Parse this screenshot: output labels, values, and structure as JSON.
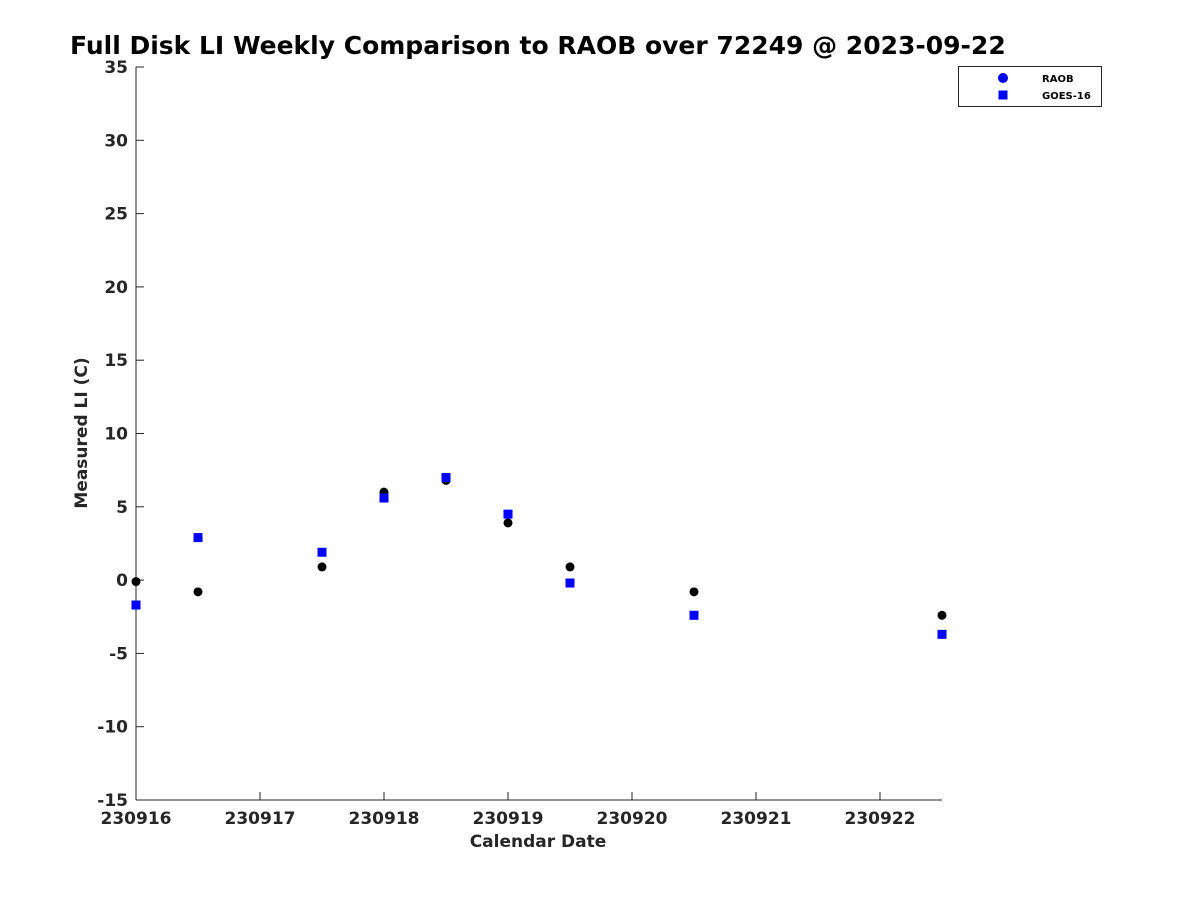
{
  "chart_data": {
    "type": "scatter",
    "title": "Full Disk LI Weekly Comparison to RAOB over 72249 @ 2023-09-22",
    "xlabel": "Calendar Date",
    "ylabel": "Measured LI (C)",
    "xlim": [
      0,
      6.5
    ],
    "ylim": [
      -15,
      35
    ],
    "x_ticks": [
      {
        "value": 0,
        "label": "230916"
      },
      {
        "value": 1,
        "label": "230917"
      },
      {
        "value": 2,
        "label": "230918"
      },
      {
        "value": 3,
        "label": "230919"
      },
      {
        "value": 4,
        "label": "230920"
      },
      {
        "value": 5,
        "label": "230921"
      },
      {
        "value": 6,
        "label": "230922"
      }
    ],
    "y_ticks": [
      {
        "value": 35,
        "label": "35"
      },
      {
        "value": 30,
        "label": "30"
      },
      {
        "value": 25,
        "label": "25"
      },
      {
        "value": 20,
        "label": "20"
      },
      {
        "value": 15,
        "label": "15"
      },
      {
        "value": 10,
        "label": "10"
      },
      {
        "value": 5,
        "label": "5"
      },
      {
        "value": 0,
        "label": "0"
      },
      {
        "value": -5,
        "label": "-5"
      },
      {
        "value": -10,
        "label": "-10"
      },
      {
        "value": -15,
        "label": "-15"
      }
    ],
    "grid": false,
    "legend_position": "top-right",
    "series": [
      {
        "name": "RAOB",
        "marker": "circle",
        "color": "#000000",
        "legend_color": "#0000ff",
        "x": [
          0,
          0.5,
          1.5,
          2,
          2.5,
          3,
          3.5,
          4.5,
          6.5
        ],
        "y": [
          -0.1,
          -0.8,
          0.9,
          6.0,
          6.8,
          3.9,
          0.9,
          -0.8,
          -2.4
        ]
      },
      {
        "name": "GOES-16",
        "marker": "square",
        "color": "#0000ff",
        "legend_color": "#0000ff",
        "x": [
          0,
          0.5,
          1.5,
          2,
          2.5,
          3,
          3.5,
          4.5,
          6.5
        ],
        "y": [
          -1.7,
          2.9,
          1.9,
          5.6,
          7.0,
          4.5,
          -0.2,
          -2.4,
          -3.7
        ]
      }
    ]
  }
}
